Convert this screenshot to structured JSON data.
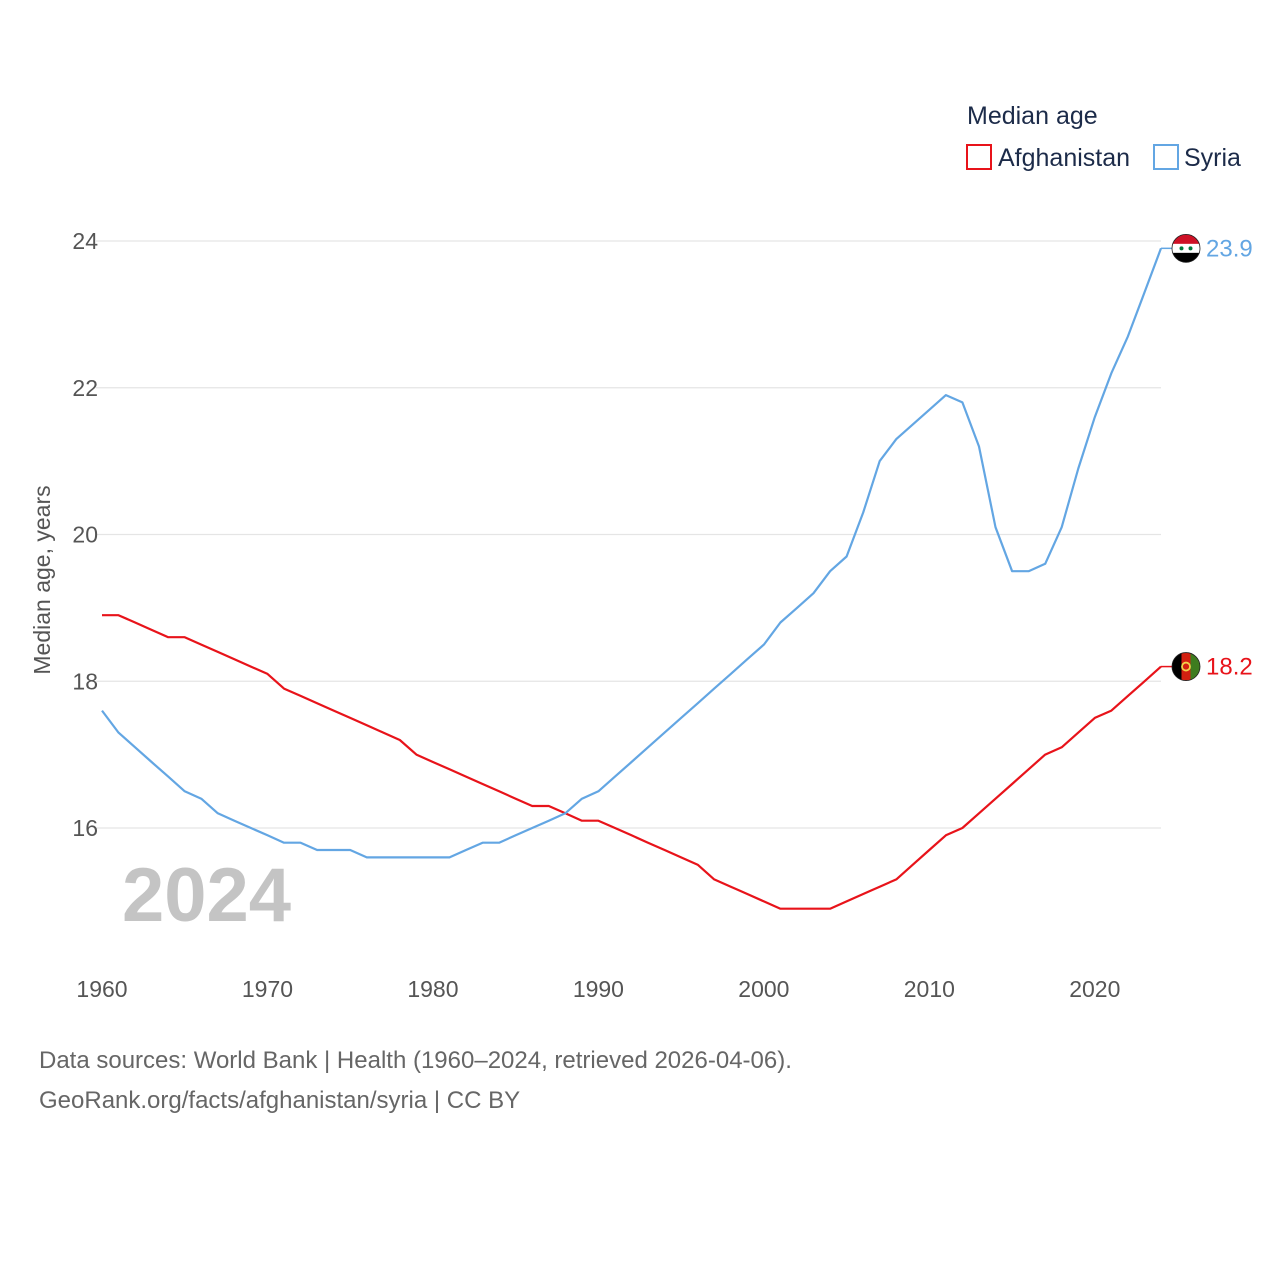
{
  "colors": {
    "afghanistan": "#e8131a",
    "syria": "#63a6e3",
    "grid": "#e5e5e5",
    "text": "#555555",
    "legend_text": "#1c2b49",
    "watermark": "#c4c4c4"
  },
  "current_year": "2024",
  "source": {
    "line1": "Data sources: World Bank | Health (1960–2024, retrieved 2026-04-06).",
    "line2": "GeoRank.org/facts/afghanistan/syria | CC BY"
  },
  "chart_data": {
    "type": "line",
    "title": "",
    "legend_title": "Median age",
    "legend_position": "top-right",
    "xlabel": "",
    "ylabel": "Median age, years",
    "xlim": [
      1960,
      2024
    ],
    "ylim": [
      14.3,
      25.4
    ],
    "x_ticks": [
      "1960",
      "1970",
      "1980",
      "1990",
      "2000",
      "2010",
      "2020"
    ],
    "y_ticks": [
      "16",
      "18",
      "20",
      "22",
      "24"
    ],
    "grid": true,
    "x": [
      1960,
      1961,
      1962,
      1963,
      1964,
      1965,
      1966,
      1967,
      1968,
      1969,
      1970,
      1971,
      1972,
      1973,
      1974,
      1975,
      1976,
      1977,
      1978,
      1979,
      1980,
      1981,
      1982,
      1983,
      1984,
      1985,
      1986,
      1987,
      1988,
      1989,
      1990,
      1991,
      1992,
      1993,
      1994,
      1995,
      1996,
      1997,
      1998,
      1999,
      2000,
      2001,
      2002,
      2003,
      2004,
      2005,
      2006,
      2007,
      2008,
      2009,
      2010,
      2011,
      2012,
      2013,
      2014,
      2015,
      2016,
      2017,
      2018,
      2019,
      2020,
      2021,
      2022,
      2023,
      2024
    ],
    "series": [
      {
        "name": "Afghanistan",
        "color": "#e8131a",
        "end_label": "18.2",
        "flag": "afghanistan-flag",
        "values": [
          18.9,
          18.9,
          18.8,
          18.7,
          18.6,
          18.6,
          18.5,
          18.4,
          18.3,
          18.2,
          18.1,
          17.9,
          17.8,
          17.7,
          17.6,
          17.5,
          17.4,
          17.3,
          17.2,
          17.0,
          16.9,
          16.8,
          16.7,
          16.6,
          16.5,
          16.4,
          16.3,
          16.3,
          16.2,
          16.1,
          16.1,
          16.0,
          15.9,
          15.8,
          15.7,
          15.6,
          15.5,
          15.3,
          15.2,
          15.1,
          15.0,
          14.9,
          14.9,
          14.9,
          14.9,
          15.0,
          15.1,
          15.2,
          15.3,
          15.5,
          15.7,
          15.9,
          16.0,
          16.2,
          16.4,
          16.6,
          16.8,
          17.0,
          17.1,
          17.3,
          17.5,
          17.6,
          17.8,
          18.0,
          18.2
        ]
      },
      {
        "name": "Syria",
        "color": "#63a6e3",
        "end_label": "23.9",
        "flag": "syria-flag",
        "values": [
          17.6,
          17.3,
          17.1,
          16.9,
          16.7,
          16.5,
          16.4,
          16.2,
          16.1,
          16.0,
          15.9,
          15.8,
          15.8,
          15.7,
          15.7,
          15.7,
          15.6,
          15.6,
          15.6,
          15.6,
          15.6,
          15.6,
          15.7,
          15.8,
          15.8,
          15.9,
          16.0,
          16.1,
          16.2,
          16.4,
          16.5,
          16.7,
          16.9,
          17.1,
          17.3,
          17.5,
          17.7,
          17.9,
          18.1,
          18.3,
          18.5,
          18.8,
          19.0,
          19.2,
          19.5,
          19.7,
          20.3,
          21.0,
          21.3,
          21.5,
          21.7,
          21.9,
          21.8,
          21.2,
          20.1,
          19.5,
          19.5,
          19.6,
          20.1,
          20.9,
          21.6,
          22.2,
          22.7,
          23.3,
          23.9
        ]
      }
    ]
  }
}
